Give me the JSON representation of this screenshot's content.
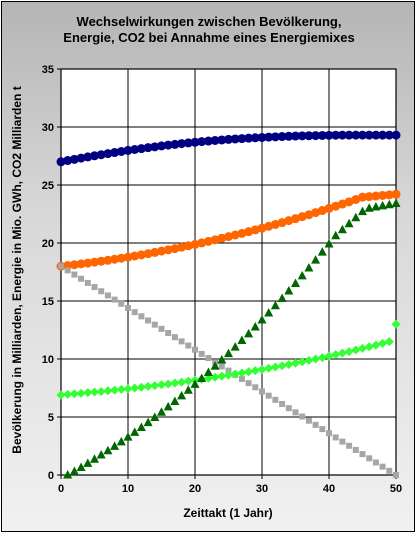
{
  "chart_data": {
    "type": "scatter",
    "title_line1": "Wechselwirkungen zwischen Bevölkerung,",
    "title_line2": "Energie, CO2 bei Annahme eines Energiemixes",
    "xlabel": "Zeittakt (1 Jahr)",
    "ylabel": "Bevölkerung in Milliarden, Energie in Mio. GWh, CO2 Milliarden t",
    "xlim": [
      0,
      50
    ],
    "ylim": [
      0,
      35
    ],
    "xticks": [
      "0",
      "10",
      "20",
      "30",
      "40",
      "50"
    ],
    "yticks": [
      "0",
      "5",
      "10",
      "15",
      "20",
      "25",
      "30",
      "35"
    ],
    "grid": true,
    "legend": "none",
    "series": [
      {
        "marker": "circle",
        "color": "#000080",
        "x": [
          0,
          1,
          2,
          3,
          4,
          5,
          6,
          7,
          8,
          9,
          10,
          11,
          12,
          13,
          14,
          15,
          16,
          17,
          18,
          19,
          20,
          21,
          22,
          23,
          24,
          25,
          26,
          27,
          28,
          29,
          30,
          31,
          32,
          33,
          34,
          35,
          36,
          37,
          38,
          39,
          40,
          41,
          42,
          43,
          44,
          45,
          46,
          47,
          48,
          49,
          50
        ],
        "y": [
          27.0,
          27.11,
          27.21,
          27.32,
          27.42,
          27.52,
          27.61,
          27.71,
          27.8,
          27.89,
          27.98,
          28.06,
          28.14,
          28.22,
          28.29,
          28.37,
          28.44,
          28.5,
          28.57,
          28.63,
          28.68,
          28.74,
          28.79,
          28.84,
          28.88,
          28.93,
          28.97,
          29.0,
          29.04,
          29.07,
          29.1,
          29.13,
          29.15,
          29.18,
          29.2,
          29.22,
          29.24,
          29.25,
          29.26,
          29.27,
          29.28,
          29.29,
          29.3,
          29.3,
          29.3,
          29.3,
          29.3,
          29.3,
          29.3,
          29.3,
          29.3
        ]
      },
      {
        "marker": "circle",
        "color": "#ff6600",
        "x": [
          0,
          1,
          2,
          3,
          4,
          5,
          6,
          7,
          8,
          9,
          10,
          11,
          12,
          13,
          14,
          15,
          16,
          17,
          18,
          19,
          20,
          21,
          22,
          23,
          24,
          25,
          26,
          27,
          28,
          29,
          30,
          31,
          32,
          33,
          34,
          35,
          36,
          37,
          38,
          39,
          40,
          41,
          42,
          43,
          44,
          45,
          46,
          47,
          48,
          49,
          50
        ],
        "y": [
          18.0,
          18.06,
          18.13,
          18.2,
          18.27,
          18.35,
          18.43,
          18.51,
          18.6,
          18.69,
          18.78,
          18.88,
          18.98,
          19.08,
          19.19,
          19.3,
          19.41,
          19.52,
          19.64,
          19.76,
          19.88,
          20.01,
          20.14,
          20.27,
          20.41,
          20.55,
          20.69,
          20.83,
          20.98,
          21.13,
          21.28,
          21.44,
          21.6,
          21.76,
          21.93,
          22.1,
          22.27,
          22.44,
          22.62,
          22.8,
          22.98,
          23.17,
          23.36,
          23.55,
          23.75,
          23.95,
          24.0,
          24.05,
          24.1,
          24.15,
          24.2
        ]
      },
      {
        "marker": "square",
        "color": "#a6a6a6",
        "x": [
          0,
          1,
          2,
          3,
          4,
          5,
          6,
          7,
          8,
          9,
          10,
          11,
          12,
          13,
          14,
          15,
          16,
          17,
          18,
          19,
          20,
          21,
          22,
          23,
          24,
          25,
          26,
          27,
          28,
          29,
          30,
          31,
          32,
          33,
          34,
          35,
          36,
          37,
          38,
          39,
          40,
          41,
          42,
          43,
          44,
          45,
          46,
          47,
          48,
          49,
          50
        ],
        "y": [
          18.0,
          17.64,
          17.28,
          16.92,
          16.56,
          16.2,
          15.84,
          15.48,
          15.12,
          14.76,
          14.4,
          14.04,
          13.68,
          13.32,
          12.96,
          12.6,
          12.24,
          11.88,
          11.52,
          11.16,
          10.8,
          10.44,
          10.08,
          9.72,
          9.36,
          9.0,
          8.64,
          8.28,
          7.92,
          7.56,
          7.2,
          6.84,
          6.48,
          6.12,
          5.76,
          5.4,
          5.04,
          4.68,
          4.32,
          3.96,
          3.6,
          3.24,
          2.88,
          2.52,
          2.16,
          1.8,
          1.44,
          1.08,
          0.72,
          0.36,
          0.0
        ]
      },
      {
        "marker": "diamond",
        "color": "#33ff33",
        "x": [
          0,
          1,
          2,
          3,
          4,
          5,
          6,
          7,
          8,
          9,
          10,
          11,
          12,
          13,
          14,
          15,
          16,
          17,
          18,
          19,
          20,
          21,
          22,
          23,
          24,
          25,
          26,
          27,
          28,
          29,
          30,
          31,
          32,
          33,
          34,
          35,
          36,
          37,
          38,
          39,
          40,
          41,
          42,
          43,
          44,
          45,
          46,
          47,
          48,
          49,
          50
        ],
        "y": [
          6.9,
          6.95,
          7.0,
          7.05,
          7.1,
          7.15,
          7.2,
          7.26,
          7.32,
          7.38,
          7.44,
          7.5,
          7.57,
          7.64,
          7.71,
          7.78,
          7.85,
          7.93,
          8.01,
          8.09,
          8.17,
          8.25,
          8.34,
          8.43,
          8.52,
          8.61,
          8.7,
          8.8,
          8.9,
          9.0,
          9.1,
          9.2,
          9.31,
          9.42,
          9.53,
          9.64,
          9.76,
          9.88,
          10.0,
          10.12,
          10.25,
          10.38,
          10.51,
          10.64,
          10.78,
          10.92,
          11.06,
          11.2,
          11.35,
          11.5,
          13.0
        ]
      },
      {
        "marker": "triangle",
        "color": "#006600",
        "x": [
          1,
          2,
          3,
          4,
          5,
          6,
          7,
          8,
          9,
          10,
          11,
          12,
          13,
          14,
          15,
          16,
          17,
          18,
          19,
          20,
          21,
          22,
          23,
          24,
          25,
          26,
          27,
          28,
          29,
          30,
          31,
          32,
          33,
          34,
          35,
          36,
          37,
          38,
          39,
          40,
          41,
          42,
          43,
          44,
          45,
          46,
          47,
          48,
          49,
          50
        ],
        "y": [
          0.0,
          0.3,
          0.65,
          1.0,
          1.36,
          1.72,
          2.09,
          2.47,
          2.86,
          3.26,
          3.67,
          4.09,
          4.52,
          4.96,
          5.41,
          5.87,
          6.34,
          6.82,
          7.31,
          7.81,
          8.32,
          8.84,
          9.37,
          9.91,
          10.46,
          11.02,
          11.59,
          12.17,
          12.76,
          13.36,
          13.97,
          14.59,
          15.22,
          15.86,
          16.51,
          17.17,
          17.84,
          18.52,
          19.21,
          19.91,
          20.62,
          21.14,
          21.66,
          22.18,
          22.7,
          23.0,
          23.1,
          23.2,
          23.3,
          23.4
        ]
      }
    ]
  }
}
